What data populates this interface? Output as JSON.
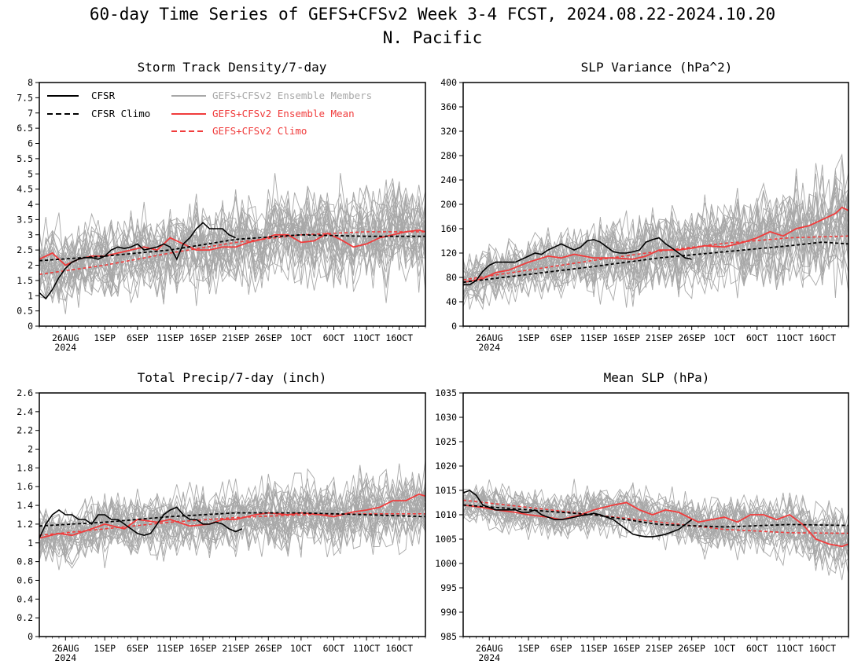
{
  "figure": {
    "title_line1": "60-day Time Series of GEFS+CFSv2 Week 3-4 FCST, 2024.08.22-2024.10.20",
    "title_line2": "N. Pacific"
  },
  "legend": {
    "cfsr": "CFSR",
    "cfsr_climo": "CFSR Climo",
    "members": "GEFS+CFSv2 Ensemble Members",
    "ens_mean": "GEFS+CFSv2 Ensemble Mean",
    "gefs_climo": "GEFS+CFSv2 Climo"
  },
  "colors": {
    "cfsr": "#000000",
    "cfsr_climo": "#000000",
    "members": "#a8a8a8",
    "ens_mean": "#f03c3c",
    "gefs_climo": "#f03c3c"
  },
  "x_axis": {
    "day_range": [
      0,
      59
    ],
    "tick_days": [
      4,
      10,
      15,
      20,
      25,
      30,
      35,
      40,
      45,
      50,
      55
    ],
    "tick_labels": [
      "26AUG",
      "1SEP",
      "6SEP",
      "11SEP",
      "16SEP",
      "21SEP",
      "26SEP",
      "1OCT",
      "6OCT",
      "11OCT",
      "16OCT"
    ],
    "year_label": "2024"
  },
  "chart_data": [
    {
      "type": "line",
      "title": "Storm Track Density/7-day",
      "ylim": [
        0,
        8
      ],
      "yticks": [
        0,
        0.5,
        1,
        1.5,
        2,
        2.5,
        3,
        3.5,
        4,
        4.5,
        5,
        5.5,
        6,
        6.5,
        7,
        7.5,
        8
      ],
      "ytick_labels": [
        "0",
        "0.5",
        "1",
        "1.5",
        "2",
        "2.5",
        "3",
        "3.5",
        "4",
        "4.5",
        "5",
        "5.5",
        "6",
        "6.5",
        "7",
        "7.5",
        "8"
      ],
      "members": {
        "count": 30,
        "spread": 0.85,
        "spread_growth": 0.3
      },
      "series": {
        "cfsr": {
          "x": [
            0,
            1,
            2,
            3,
            4,
            5,
            6,
            7,
            8,
            9,
            10,
            11,
            12,
            13,
            14,
            15,
            16,
            17,
            18,
            19,
            20,
            21,
            22,
            23,
            24,
            25,
            26,
            27,
            28,
            29,
            30
          ],
          "values": [
            1.1,
            0.9,
            1.2,
            1.6,
            1.9,
            2.1,
            2.2,
            2.25,
            2.25,
            2.2,
            2.3,
            2.5,
            2.6,
            2.55,
            2.6,
            2.7,
            2.5,
            2.55,
            2.6,
            2.7,
            2.6,
            2.2,
            2.7,
            2.9,
            3.2,
            3.4,
            3.2,
            3.2,
            3.2,
            3.0,
            2.9
          ]
        },
        "cfsr_climo": {
          "x": [
            0,
            10,
            20,
            30,
            40,
            50,
            59
          ],
          "values": [
            2.15,
            2.3,
            2.5,
            2.85,
            3.0,
            2.95,
            2.95
          ]
        },
        "ens_mean": {
          "x": [
            0,
            2,
            4,
            6,
            8,
            10,
            12,
            14,
            16,
            18,
            20,
            22,
            24,
            26,
            28,
            30,
            32,
            34,
            36,
            38,
            40,
            42,
            44,
            46,
            48,
            50,
            52,
            54,
            56,
            58,
            59
          ],
          "values": [
            2.2,
            2.4,
            2.0,
            2.2,
            2.3,
            2.3,
            2.4,
            2.5,
            2.6,
            2.5,
            2.9,
            2.7,
            2.5,
            2.5,
            2.6,
            2.6,
            2.75,
            2.85,
            3.0,
            3.0,
            2.75,
            2.8,
            3.05,
            2.85,
            2.6,
            2.7,
            2.9,
            3.0,
            3.1,
            3.15,
            3.1
          ]
        },
        "gefs_climo": {
          "x": [
            0,
            10,
            20,
            30,
            40,
            50,
            59
          ],
          "values": [
            1.7,
            2.0,
            2.4,
            2.75,
            3.0,
            3.1,
            3.1
          ]
        }
      }
    },
    {
      "type": "line",
      "title": "SLP Variance (hPa^2)",
      "ylim": [
        0,
        400
      ],
      "yticks": [
        0,
        40,
        80,
        120,
        160,
        200,
        240,
        280,
        320,
        360,
        400
      ],
      "ytick_labels": [
        "0",
        "40",
        "80",
        "120",
        "160",
        "200",
        "240",
        "280",
        "320",
        "360",
        "400"
      ],
      "members": {
        "count": 30,
        "spread": 28,
        "spread_growth": 1.3
      },
      "series": {
        "cfsr": {
          "x": [
            0,
            1,
            2,
            3,
            4,
            5,
            6,
            7,
            8,
            9,
            10,
            11,
            12,
            13,
            14,
            15,
            16,
            17,
            18,
            19,
            20,
            21,
            22,
            23,
            24,
            25,
            26,
            27,
            28,
            29,
            30,
            31,
            32,
            33,
            34,
            35
          ],
          "values": [
            68,
            68,
            75,
            90,
            100,
            105,
            105,
            105,
            105,
            110,
            115,
            120,
            118,
            125,
            130,
            135,
            130,
            125,
            130,
            140,
            142,
            138,
            130,
            122,
            120,
            120,
            122,
            125,
            138,
            142,
            145,
            135,
            128,
            120,
            112,
            110
          ]
        },
        "cfsr_climo": {
          "x": [
            0,
            10,
            20,
            30,
            40,
            50,
            55,
            59
          ],
          "values": [
            72,
            85,
            98,
            112,
            122,
            132,
            138,
            135
          ]
        },
        "ens_mean": {
          "x": [
            0,
            3,
            5,
            7,
            10,
            13,
            15,
            17,
            20,
            23,
            26,
            28,
            30,
            33,
            35,
            37,
            40,
            43,
            45,
            47,
            49,
            51,
            53,
            55,
            57,
            58,
            59
          ],
          "values": [
            72,
            78,
            88,
            92,
            105,
            115,
            112,
            118,
            112,
            112,
            110,
            115,
            125,
            125,
            128,
            132,
            130,
            138,
            145,
            155,
            148,
            160,
            165,
            175,
            185,
            195,
            190
          ]
        },
        "gefs_climo": {
          "x": [
            0,
            10,
            20,
            30,
            40,
            50,
            59
          ],
          "values": [
            76,
            92,
            108,
            123,
            136,
            145,
            148
          ]
        }
      }
    },
    {
      "type": "line",
      "title": "Total Precip/7-day (inch)",
      "ylim": [
        0,
        2.6
      ],
      "yticks": [
        0,
        0.2,
        0.4,
        0.6,
        0.8,
        1,
        1.2,
        1.4,
        1.6,
        1.8,
        2,
        2.2,
        2.4,
        2.6
      ],
      "ytick_labels": [
        "0",
        "0.2",
        "0.4",
        "0.6",
        "0.8",
        "1",
        "1.2",
        "1.4",
        "1.6",
        "1.8",
        "2",
        "2.2",
        "2.4",
        "2.6"
      ],
      "members": {
        "count": 30,
        "spread": 0.2,
        "spread_growth": 0.4
      },
      "series": {
        "cfsr": {
          "x": [
            0,
            1,
            2,
            3,
            4,
            5,
            6,
            7,
            8,
            9,
            10,
            11,
            12,
            13,
            14,
            15,
            16,
            17,
            18,
            19,
            20,
            21,
            22,
            23,
            24,
            25,
            26,
            27,
            28,
            29,
            30,
            31
          ],
          "values": [
            1.05,
            1.2,
            1.3,
            1.35,
            1.3,
            1.3,
            1.25,
            1.25,
            1.2,
            1.3,
            1.3,
            1.25,
            1.25,
            1.2,
            1.15,
            1.1,
            1.08,
            1.1,
            1.2,
            1.3,
            1.35,
            1.38,
            1.3,
            1.25,
            1.25,
            1.2,
            1.2,
            1.22,
            1.2,
            1.15,
            1.12,
            1.15
          ]
        },
        "cfsr_climo": {
          "x": [
            0,
            10,
            20,
            30,
            40,
            50,
            59
          ],
          "values": [
            1.18,
            1.22,
            1.28,
            1.32,
            1.32,
            1.3,
            1.28
          ]
        },
        "ens_mean": {
          "x": [
            0,
            3,
            5,
            8,
            10,
            13,
            15,
            18,
            20,
            23,
            26,
            28,
            30,
            33,
            35,
            38,
            40,
            43,
            45,
            48,
            50,
            52,
            54,
            56,
            58,
            59
          ],
          "values": [
            1.05,
            1.1,
            1.08,
            1.15,
            1.2,
            1.15,
            1.25,
            1.22,
            1.25,
            1.18,
            1.2,
            1.25,
            1.25,
            1.3,
            1.32,
            1.3,
            1.32,
            1.3,
            1.28,
            1.33,
            1.35,
            1.38,
            1.45,
            1.45,
            1.52,
            1.5
          ]
        },
        "gefs_climo": {
          "x": [
            0,
            10,
            20,
            30,
            40,
            50,
            59
          ],
          "values": [
            1.08,
            1.15,
            1.22,
            1.27,
            1.3,
            1.31,
            1.31
          ]
        }
      }
    },
    {
      "type": "line",
      "title": "Mean SLP (hPa)",
      "ylim": [
        985,
        1035
      ],
      "yticks": [
        985,
        990,
        995,
        1000,
        1005,
        1010,
        1015,
        1020,
        1025,
        1030,
        1035
      ],
      "ytick_labels": [
        "985",
        "990",
        "995",
        "1000",
        "1005",
        "1010",
        "1015",
        "1020",
        "1025",
        "1030",
        "1035"
      ],
      "members": {
        "count": 30,
        "spread": 2.8,
        "spread_growth": 0.6
      },
      "series": {
        "cfsr": {
          "x": [
            0,
            1,
            2,
            3,
            4,
            5,
            6,
            7,
            8,
            9,
            10,
            11,
            12,
            13,
            14,
            15,
            16,
            17,
            18,
            19,
            20,
            21,
            22,
            23,
            24,
            25,
            26,
            27,
            28,
            29,
            30,
            31,
            32,
            33,
            34,
            35
          ],
          "values": [
            1014.5,
            1015,
            1014,
            1012,
            1011.5,
            1011,
            1011,
            1011,
            1011,
            1010.5,
            1010.5,
            1011,
            1010,
            1009.5,
            1009,
            1009,
            1009.2,
            1009.5,
            1009.8,
            1010,
            1010.3,
            1010,
            1009.5,
            1009,
            1008,
            1007,
            1006,
            1005.7,
            1005.5,
            1005.5,
            1005.7,
            1006,
            1006.5,
            1007,
            1008,
            1009
          ]
        },
        "cfsr_climo": {
          "x": [
            0,
            10,
            20,
            30,
            40,
            50,
            59
          ],
          "values": [
            1012,
            1011,
            1010,
            1008,
            1007.5,
            1008,
            1007.8
          ]
        },
        "ens_mean": {
          "x": [
            0,
            3,
            5,
            8,
            10,
            13,
            15,
            18,
            20,
            23,
            25,
            27,
            29,
            31,
            33,
            36,
            38,
            40,
            42,
            44,
            46,
            48,
            50,
            52,
            54,
            56,
            58,
            59
          ],
          "values": [
            1012,
            1011.5,
            1011,
            1010.5,
            1010,
            1009.5,
            1009,
            1010,
            1011,
            1012,
            1012.5,
            1011,
            1010,
            1011,
            1010.5,
            1008.5,
            1009,
            1009.5,
            1008.5,
            1010,
            1010,
            1009,
            1010,
            1008,
            1005,
            1004,
            1003.5,
            1004
          ]
        },
        "gefs_climo": {
          "x": [
            0,
            10,
            20,
            30,
            40,
            50,
            59
          ],
          "values": [
            1013,
            1011.5,
            1010,
            1008.5,
            1007,
            1006.3,
            1006.2
          ]
        }
      }
    }
  ]
}
